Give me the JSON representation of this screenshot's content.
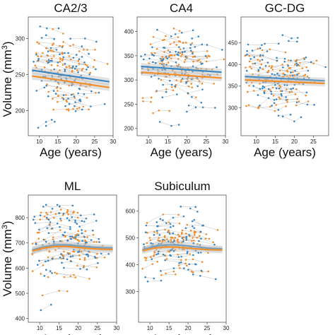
{
  "figure": {
    "ylabel_main": "Volume (mm",
    "ylabel_sup": "3",
    "ylabel_close": ")"
  },
  "colors": {
    "series_a": "#3a86c0",
    "series_b": "#f28e2b",
    "ribbon": "#bfbfbf",
    "connector": "#a9a9a9",
    "frame": "#555555"
  },
  "chart_data": [
    {
      "type": "scatter",
      "title": "CA2/3",
      "xlabel": "Age (years)",
      "xticks": [
        10,
        15,
        20,
        25,
        30
      ],
      "yticks": [
        200,
        250,
        300
      ],
      "xlim": [
        7,
        30
      ],
      "ylim": [
        165,
        330
      ],
      "fit_lines": [
        {
          "color": "series_a",
          "x": [
            8,
            29
          ],
          "y": [
            256,
            240
          ]
        },
        {
          "color": "series_b",
          "x": [
            8,
            29
          ],
          "y": [
            248,
            232
          ]
        }
      ],
      "ribbon_halfwidth": 5,
      "cloud": {
        "center_y": 246,
        "spread_y": 28
      }
    },
    {
      "type": "scatter",
      "title": "CA4",
      "xlabel": "Age (years)",
      "xticks": [
        10,
        15,
        20,
        25,
        30
      ],
      "yticks": [
        200,
        250,
        300,
        350,
        400
      ],
      "xlim": [
        7,
        30
      ],
      "ylim": [
        185,
        430
      ],
      "fit_lines": [
        {
          "color": "series_a",
          "x": [
            8,
            29
          ],
          "y": [
            328,
            316
          ]
        },
        {
          "color": "series_b",
          "x": [
            8,
            29
          ],
          "y": [
            316,
            304
          ]
        }
      ],
      "ribbon_halfwidth": 7,
      "cloud": {
        "center_y": 318,
        "spread_y": 38
      }
    },
    {
      "type": "scatter",
      "title": "GC-DG",
      "xlabel": "Age (years)",
      "xticks": [
        10,
        15,
        20,
        25
      ],
      "yticks": [
        300,
        350,
        400,
        450
      ],
      "xlim": [
        6,
        29
      ],
      "ylim": [
        235,
        510
      ],
      "fit_lines": [
        {
          "color": "series_a",
          "x": [
            7,
            28
          ],
          "y": [
            372,
            362
          ]
        },
        {
          "color": "series_b",
          "x": [
            7,
            28
          ],
          "y": [
            364,
            356
          ]
        }
      ],
      "ribbon_halfwidth": 7,
      "cloud": {
        "center_y": 366,
        "spread_y": 40
      }
    },
    {
      "type": "scatter",
      "title": "ML",
      "xlabel": "Age (years)",
      "xticks": [
        10,
        15,
        20,
        25,
        30
      ],
      "yticks": [
        400,
        500,
        600,
        700,
        800
      ],
      "xlim": [
        7,
        30
      ],
      "ylim": [
        385,
        890
      ],
      "fit_lines": [
        {
          "color": "series_a",
          "x": [
            8,
            11,
            14,
            17,
            20,
            23,
            26,
            29
          ],
          "y": [
            672,
            684,
            692,
            692,
            688,
            684,
            681,
            680
          ]
        },
        {
          "color": "series_b",
          "x": [
            8,
            11,
            14,
            17,
            20,
            23,
            26,
            29
          ],
          "y": [
            668,
            680,
            686,
            686,
            682,
            678,
            675,
            674
          ]
        }
      ],
      "ribbon_halfwidth": 14,
      "cloud": {
        "center_y": 680,
        "spread_y": 75
      }
    },
    {
      "type": "scatter",
      "title": "Subiculum",
      "xlabel": "Age (years)",
      "xticks": [
        10,
        15,
        20,
        25,
        30
      ],
      "yticks": [
        300,
        400,
        500,
        600
      ],
      "xlim": [
        7,
        30
      ],
      "ylim": [
        185,
        660
      ],
      "fit_lines": [
        {
          "color": "series_a",
          "x": [
            8,
            11,
            14,
            17,
            20,
            23,
            26,
            29
          ],
          "y": [
            455,
            468,
            474,
            474,
            470,
            465,
            461,
            459
          ]
        },
        {
          "color": "series_b",
          "x": [
            8,
            11,
            14,
            17,
            20,
            23,
            26,
            29
          ],
          "y": [
            452,
            462,
            466,
            466,
            462,
            458,
            456,
            455
          ]
        }
      ],
      "ribbon_halfwidth": 12,
      "cloud": {
        "center_y": 462,
        "spread_y": 55
      }
    }
  ]
}
